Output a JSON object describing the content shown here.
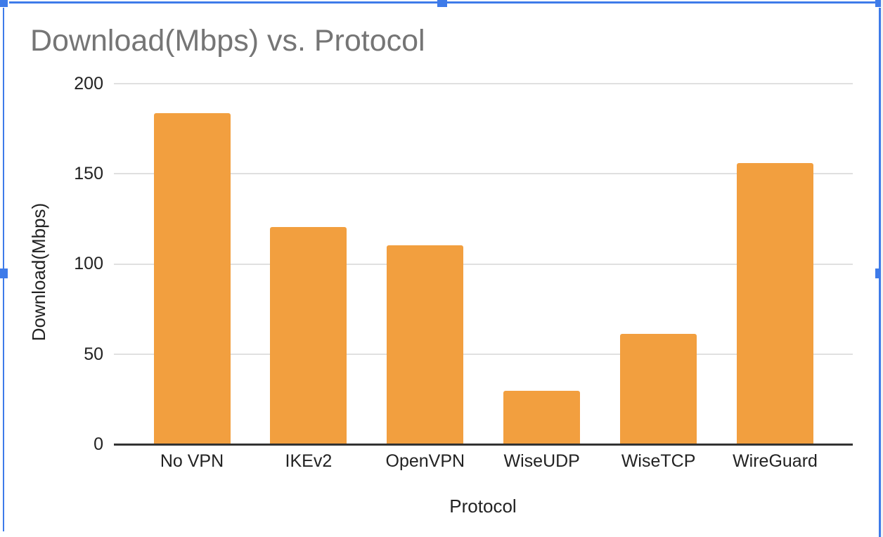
{
  "chart_data": {
    "type": "bar",
    "title": "Download(Mbps) vs. Protocol",
    "xlabel": "Protocol",
    "ylabel": "Download(Mbps)",
    "categories": [
      "No VPN",
      "IKEv2",
      "OpenVPN",
      "WiseUDP",
      "WiseTCP",
      "WireGuard"
    ],
    "values": [
      183.8,
      120.7,
      110.5,
      29.8,
      61.5,
      156.1
    ],
    "ylim": [
      0,
      200
    ],
    "yticks": [
      0,
      50,
      100,
      150,
      200
    ],
    "grid": true,
    "legend": "none"
  },
  "colors": {
    "bar": "#F29F3F",
    "title_text": "#757575",
    "axis_text": "#222222",
    "gridline": "#e0e0e0",
    "axis_line": "#333333",
    "selection": "#3E7BE9",
    "page_edge": "#f1f3f4"
  }
}
